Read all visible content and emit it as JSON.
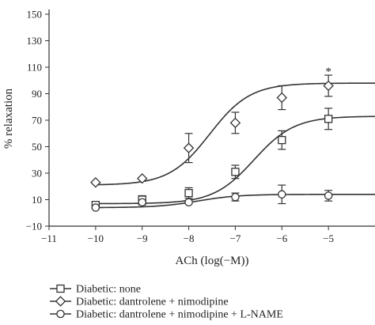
{
  "chart_data": {
    "type": "line",
    "xlabel": "ACh (log(−M))",
    "ylabel": "% relaxation",
    "xlim": [
      -11,
      -4
    ],
    "ylim": [
      -10,
      150
    ],
    "x_ticks": [
      -11,
      -10,
      -9,
      -8,
      -7,
      -6,
      -5
    ],
    "x_tick_labels": [
      "−11",
      "−10",
      "−9",
      "−8",
      "−7",
      "−6",
      "−5"
    ],
    "y_ticks": [
      -10,
      10,
      30,
      50,
      70,
      90,
      110,
      130,
      150
    ],
    "y_tick_labels": [
      "−10",
      "10",
      "30",
      "50",
      "70",
      "90",
      "110",
      "130",
      "150"
    ],
    "grid": false,
    "legend_position": "bottom-left",
    "series": [
      {
        "name": "Diabetic: none",
        "marker": "square",
        "x": [
          -10,
          -9,
          -8,
          -7,
          -6,
          -5
        ],
        "y": [
          6,
          10,
          15,
          31,
          55,
          71
        ],
        "error": [
          2,
          3,
          4,
          5,
          7,
          8
        ],
        "fit": {
          "bottom": 7,
          "top": 73,
          "ec50_log": -6.6,
          "hill": 1
        }
      },
      {
        "name": "Diabetic: dantrolene + nimodipine",
        "marker": "diamond",
        "x": [
          -10,
          -9,
          -8,
          -7,
          -6,
          -5
        ],
        "y": [
          23,
          26,
          49,
          68,
          87,
          96
        ],
        "error": [
          0,
          0,
          11,
          8,
          9,
          8
        ],
        "fit": {
          "bottom": 21,
          "top": 98,
          "ec50_log": -7.55,
          "hill": 1
        }
      },
      {
        "name": "Diabetic: dantrolene + nimodipine + L-NAME",
        "marker": "circle",
        "x": [
          -10,
          -9,
          -8,
          -7,
          -6,
          -5
        ],
        "y": [
          4,
          8,
          8,
          12,
          14,
          13
        ],
        "error": [
          0,
          2,
          0,
          3,
          7,
          4
        ],
        "fit": {
          "bottom": 4,
          "top": 14,
          "ec50_log": -7.8,
          "hill": 1
        }
      }
    ],
    "annotations": [
      {
        "text": "*",
        "x": -5,
        "y": 104
      }
    ]
  }
}
